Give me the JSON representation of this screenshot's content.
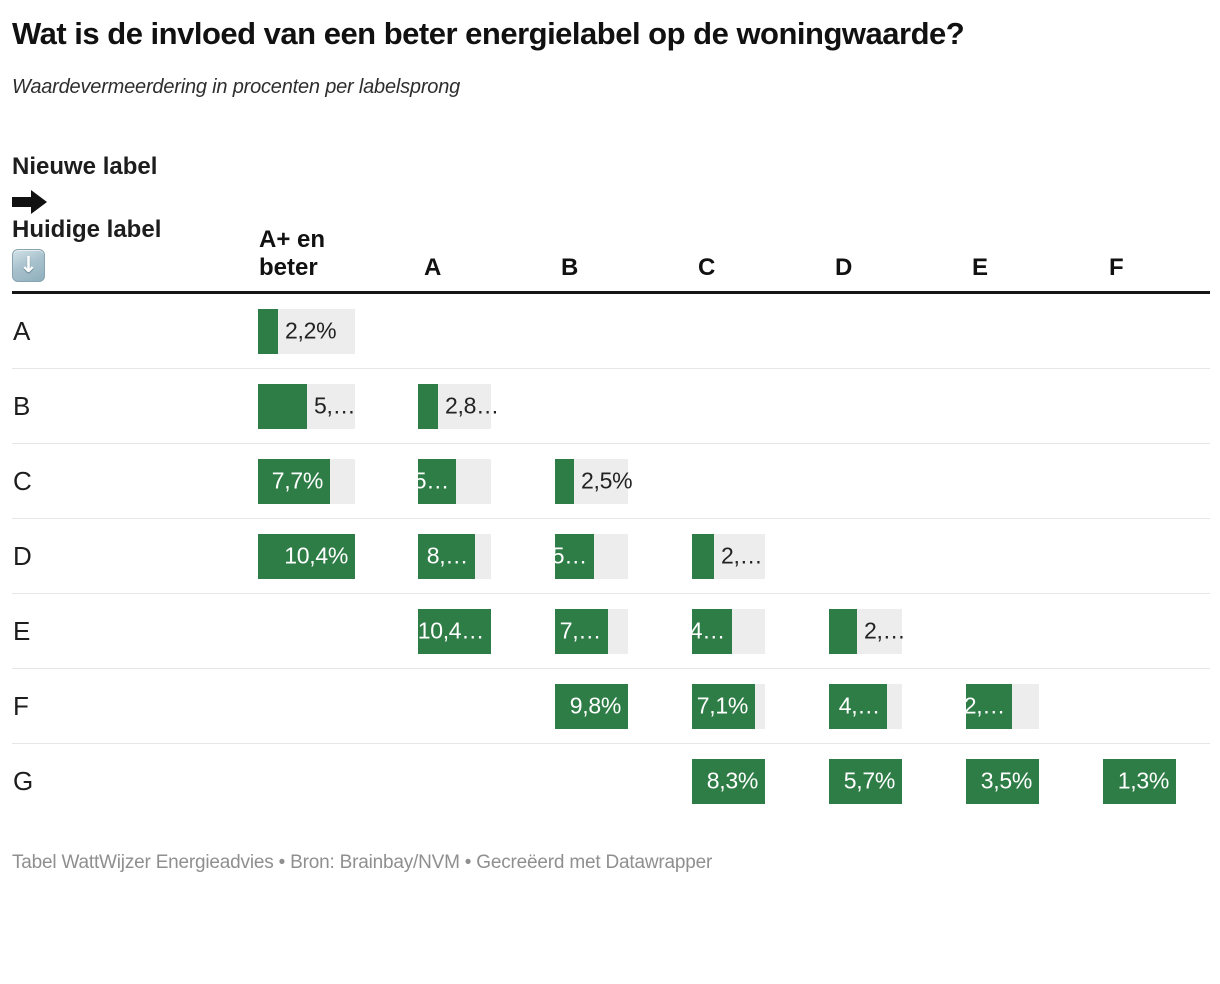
{
  "header": {
    "title": "Wat is de invloed van een beter energielabel op de woningwaarde?",
    "subtitle": "Waardevermeerdering in procenten per labelsprong"
  },
  "table": {
    "column_axis_label": "Nieuwe label",
    "row_axis_label": "Huidige label",
    "icons": {
      "right_arrow": "right-arrow-icon",
      "down_arrow": "down-arrow-icon",
      "down_arrow_glyph": "↓"
    },
    "columns": [
      "A+ en beter",
      "A",
      "B",
      "C",
      "D",
      "E",
      "F"
    ]
  },
  "chart_data": {
    "type": "table",
    "title": "Wat is de invloed van een beter energielabel op de woningwaarde?",
    "subtitle": "Waardevermeerdering in procenten per labelsprong",
    "column_header_axis": "Nieuwe label",
    "row_header_axis": "Huidige label",
    "columns": [
      "A+ en beter",
      "A",
      "B",
      "C",
      "D",
      "E",
      "F"
    ],
    "bar_scale_note": "bars scaled per column relative to column maximum",
    "colors": {
      "bar": "#2e7d46",
      "track": "#ededed"
    },
    "rows": [
      {
        "label": "A",
        "cells": [
          {
            "col": 0,
            "display": "2,2%",
            "value": 2.2,
            "frac": 0.21,
            "inside": false
          }
        ]
      },
      {
        "label": "B",
        "cells": [
          {
            "col": 0,
            "display": "5,…",
            "value": 5.3,
            "frac": 0.51,
            "inside": false
          },
          {
            "col": 1,
            "display": "2,8…",
            "value": 2.8,
            "frac": 0.27,
            "inside": false
          }
        ]
      },
      {
        "label": "C",
        "cells": [
          {
            "col": 0,
            "display": "7,7%",
            "value": 7.7,
            "frac": 0.74,
            "inside": true
          },
          {
            "col": 1,
            "display": "5…",
            "value": 5.4,
            "frac": 0.52,
            "inside": true
          },
          {
            "col": 2,
            "display": "2,5%",
            "value": 2.5,
            "frac": 0.26,
            "inside": false
          }
        ]
      },
      {
        "label": "D",
        "cells": [
          {
            "col": 0,
            "display": "10,4%",
            "value": 10.4,
            "frac": 1.0,
            "inside": true
          },
          {
            "col": 1,
            "display": "8,…",
            "value": 8.1,
            "frac": 0.78,
            "inside": true
          },
          {
            "col": 2,
            "display": "5…",
            "value": 5.2,
            "frac": 0.53,
            "inside": true
          },
          {
            "col": 3,
            "display": "2,…",
            "value": 2.5,
            "frac": 0.3,
            "inside": false
          }
        ]
      },
      {
        "label": "E",
        "cells": [
          {
            "col": 1,
            "display": "10,4…",
            "value": 10.4,
            "frac": 1.0,
            "inside": true
          },
          {
            "col": 2,
            "display": "7,…",
            "value": 7.2,
            "frac": 0.73,
            "inside": true
          },
          {
            "col": 3,
            "display": "4…",
            "value": 4.6,
            "frac": 0.55,
            "inside": true
          },
          {
            "col": 4,
            "display": "2,…",
            "value": 2.2,
            "frac": 0.38,
            "inside": false
          }
        ]
      },
      {
        "label": "F",
        "cells": [
          {
            "col": 2,
            "display": "9,8%",
            "value": 9.8,
            "frac": 1.0,
            "inside": true
          },
          {
            "col": 3,
            "display": "7,1%",
            "value": 7.1,
            "frac": 0.86,
            "inside": true
          },
          {
            "col": 4,
            "display": "4,…",
            "value": 4.5,
            "frac": 0.79,
            "inside": true
          },
          {
            "col": 5,
            "display": "2,…",
            "value": 2.2,
            "frac": 0.63,
            "inside": true
          }
        ]
      },
      {
        "label": "G",
        "cells": [
          {
            "col": 3,
            "display": "8,3%",
            "value": 8.3,
            "frac": 1.0,
            "inside": true
          },
          {
            "col": 4,
            "display": "5,7%",
            "value": 5.7,
            "frac": 1.0,
            "inside": true
          },
          {
            "col": 5,
            "display": "3,5%",
            "value": 3.5,
            "frac": 1.0,
            "inside": true
          },
          {
            "col": 6,
            "display": "1,3%",
            "value": 1.3,
            "frac": 1.0,
            "inside": true
          }
        ]
      }
    ]
  },
  "footer": {
    "credits": "Tabel WattWijzer Energieadvies • Bron: Brainbay/NVM • Gecreëerd met Datawrapper"
  }
}
